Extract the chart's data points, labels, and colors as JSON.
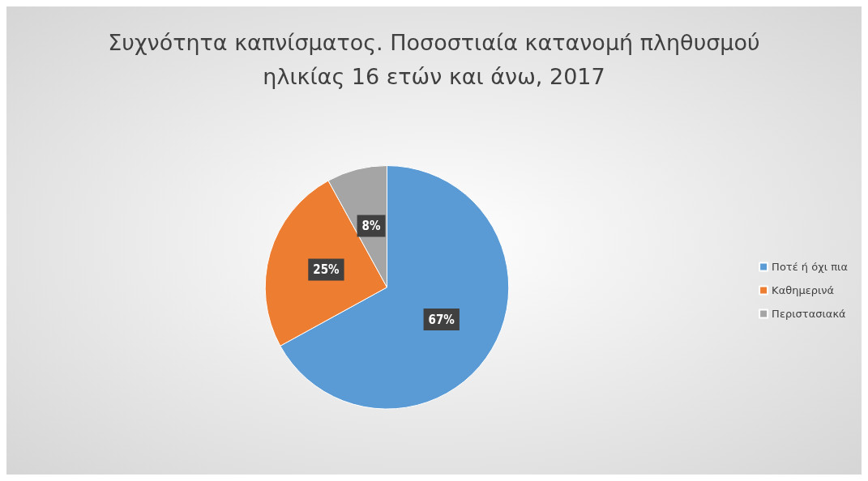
{
  "chart_data": {
    "type": "pie",
    "title": "Συχνότητα καπνίσματος. Ποσοστιαία κατανομή πληθυσμού\nηλικίας 16 ετών και άνω, 2017",
    "categories": [
      "Ποτέ ή όχι πια",
      "Καθημερινά",
      "Περιστασιακά"
    ],
    "values": [
      67,
      25,
      8
    ],
    "colors": [
      "#5b9bd5",
      "#ed7d31",
      "#a5a5a5"
    ],
    "value_labels": [
      "67%",
      "25%",
      "8%"
    ],
    "legend": "right"
  }
}
